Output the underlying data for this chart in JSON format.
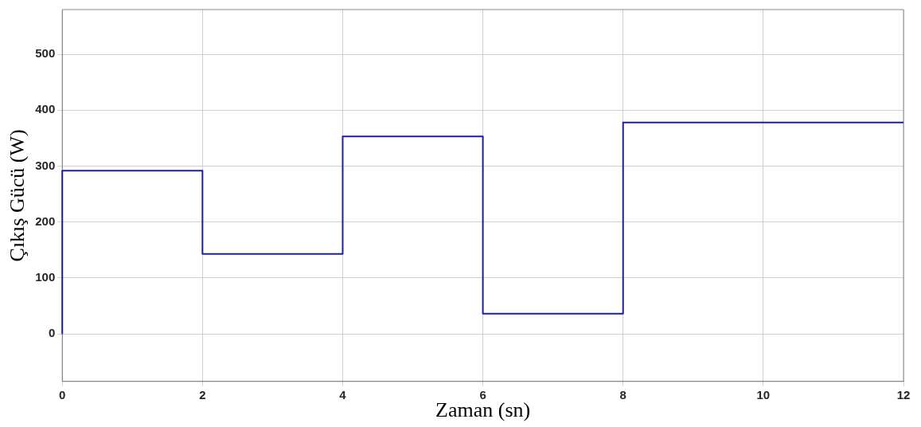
{
  "chart_data": {
    "type": "line",
    "xlabel": "Zaman (sn)",
    "ylabel": "Çıkış Gücü (W)",
    "x": [
      0,
      0,
      2,
      2,
      4,
      4,
      6,
      6,
      8,
      8,
      12
    ],
    "series": [
      {
        "color": "#1f1f9e",
        "values": [
          0,
          292,
          292,
          143,
          143,
          353,
          353,
          36,
          36,
          378,
          378
        ]
      }
    ],
    "xlim": [
      0,
      12
    ],
    "xticks": [
      0,
      2,
      4,
      6,
      8,
      10,
      12
    ],
    "ylim": [
      -85,
      580
    ],
    "yticks": [
      0,
      100,
      200,
      300,
      400,
      500
    ],
    "grid": true,
    "legend": false,
    "marker": "none",
    "line_style": "solid"
  }
}
